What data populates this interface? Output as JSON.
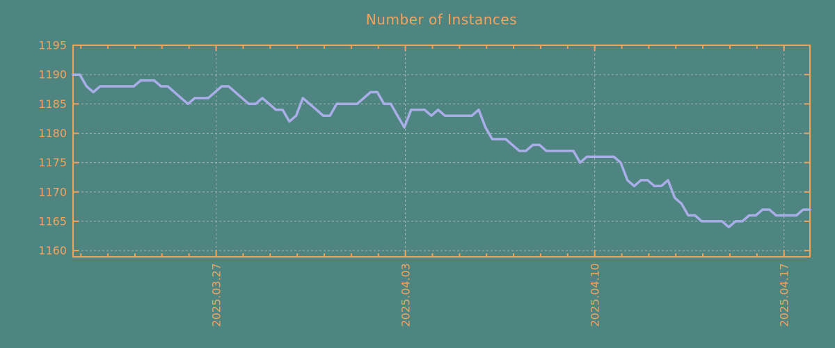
{
  "title": "Number of Instances",
  "chart_data": {
    "type": "line",
    "title": "Number of Instances",
    "series_name": "Number of Instances",
    "x_start": "2025-03-21 18:00",
    "x_step_hours": 6,
    "x_span_days": 27.25,
    "values": [
      1190,
      1190,
      1188,
      1187,
      1188,
      1188,
      1188,
      1188,
      1188,
      1188,
      1189,
      1189,
      1189,
      1188,
      1188,
      1187,
      1186,
      1185,
      1186,
      1186,
      1186,
      1187,
      1188,
      1188,
      1187,
      1186,
      1185,
      1185,
      1186,
      1185,
      1184,
      1184,
      1182,
      1183,
      1186,
      1185,
      1184,
      1183,
      1183,
      1185,
      1185,
      1185,
      1185,
      1186,
      1187,
      1187,
      1185,
      1185,
      1183,
      1181,
      1184,
      1184,
      1184,
      1183,
      1184,
      1183,
      1183,
      1183,
      1183,
      1183,
      1184,
      1181,
      1179,
      1179,
      1179,
      1178,
      1177,
      1177,
      1178,
      1178,
      1177,
      1177,
      1177,
      1177,
      1177,
      1175,
      1176,
      1176,
      1176,
      1176,
      1176,
      1175,
      1172,
      1171,
      1172,
      1172,
      1171,
      1171,
      1172,
      1169,
      1168,
      1166,
      1166,
      1165,
      1165,
      1165,
      1165,
      1164,
      1165,
      1165,
      1166,
      1166,
      1167,
      1167,
      1166,
      1166,
      1166,
      1166,
      1167,
      1167
    ],
    "x_tick_labels": [
      "2025.03.27",
      "2025.04.03",
      "2025.04.10",
      "2025.04.17"
    ],
    "x_tick_days": [
      5.29,
      12.29,
      19.29,
      26.29
    ],
    "x_minor_tick_first_day": 0.29,
    "x_minor_tick_step_days": 1,
    "y_ticks": [
      1160,
      1165,
      1170,
      1175,
      1180,
      1185,
      1190,
      1195
    ],
    "ylim": [
      1158.94,
      1195
    ],
    "grid": true,
    "legend": "none",
    "colors": {
      "background": "#4e8581",
      "axis": "#f0a35b",
      "labels": "#f2a45f",
      "line": "#a9aee8",
      "grid": "#b9bdb9"
    }
  }
}
